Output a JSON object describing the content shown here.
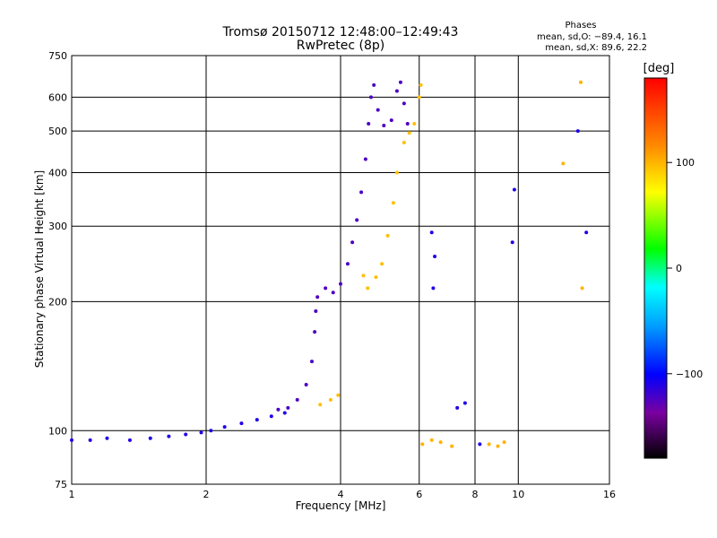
{
  "chart_data": {
    "type": "scatter",
    "title": "Tromsø 20150712 12:48:00–12:49:43",
    "subtitle": "RwPretec (8p)",
    "phase_box": {
      "heading": "Phases",
      "line_o": "mean, sd,O: −89.4, 16.1",
      "line_x": "mean, sd,X:  89.6, 22.2"
    },
    "xlabel": "Frequency [MHz]",
    "ylabel": "Stationary phase Virtual Height [km]",
    "x_scale": "log",
    "y_scale": "log",
    "xlim": [
      1,
      16
    ],
    "ylim": [
      75,
      750
    ],
    "x_ticks": [
      1,
      2,
      4,
      6,
      8,
      10,
      16
    ],
    "x_tick_labels": [
      "1",
      "2",
      "4",
      "6",
      "8",
      "10",
      "16"
    ],
    "y_ticks": [
      75,
      100,
      200,
      300,
      400,
      500,
      600,
      750
    ],
    "y_tick_labels": [
      "75",
      "100",
      "200",
      "300",
      "400",
      "500",
      "600",
      "750"
    ],
    "grid": true,
    "colorbar": {
      "label": "[deg]",
      "range": [
        -180,
        180
      ],
      "ticks": [
        100,
        0,
        -100
      ],
      "tick_labels": [
        "100",
        "0",
        "−100"
      ]
    },
    "series": [
      {
        "phase_deg": -110,
        "points": [
          [
            1.0,
            95
          ],
          [
            1.1,
            95
          ],
          [
            1.2,
            96
          ],
          [
            1.35,
            95
          ],
          [
            1.5,
            96
          ],
          [
            1.65,
            97
          ],
          [
            1.8,
            98
          ],
          [
            1.95,
            99
          ],
          [
            2.05,
            100
          ],
          [
            2.2,
            102
          ],
          [
            2.4,
            104
          ],
          [
            2.6,
            106
          ],
          [
            2.8,
            108
          ],
          [
            3.0,
            110
          ]
        ]
      },
      {
        "phase_deg": -125,
        "points": [
          [
            2.9,
            112
          ],
          [
            3.05,
            113
          ],
          [
            3.2,
            118
          ],
          [
            3.35,
            128
          ],
          [
            3.45,
            145
          ],
          [
            3.5,
            170
          ],
          [
            3.52,
            190
          ],
          [
            3.55,
            205
          ],
          [
            3.7,
            215
          ],
          [
            3.85,
            210
          ],
          [
            4.0,
            220
          ],
          [
            4.15,
            245
          ],
          [
            4.25,
            275
          ],
          [
            4.35,
            310
          ],
          [
            4.45,
            360
          ],
          [
            4.55,
            430
          ],
          [
            4.62,
            520
          ],
          [
            4.68,
            600
          ],
          [
            4.75,
            640
          ],
          [
            4.85,
            560
          ],
          [
            5.0,
            515
          ],
          [
            5.2,
            530
          ],
          [
            5.35,
            620
          ],
          [
            5.45,
            650
          ],
          [
            5.55,
            580
          ],
          [
            5.65,
            520
          ]
        ]
      },
      {
        "phase_deg": 95,
        "points": [
          [
            3.6,
            115
          ],
          [
            3.8,
            118
          ],
          [
            3.95,
            121
          ],
          [
            4.5,
            230
          ],
          [
            4.6,
            215
          ],
          [
            4.8,
            228
          ],
          [
            4.95,
            245
          ],
          [
            5.1,
            285
          ],
          [
            5.25,
            340
          ],
          [
            5.35,
            400
          ],
          [
            5.55,
            470
          ],
          [
            5.7,
            495
          ],
          [
            5.85,
            520
          ],
          [
            6.0,
            600
          ],
          [
            6.05,
            640
          ]
        ]
      },
      {
        "phase_deg": 100,
        "points": [
          [
            6.1,
            93
          ],
          [
            6.4,
            95
          ],
          [
            6.7,
            94
          ],
          [
            7.1,
            92
          ],
          [
            8.6,
            93
          ],
          [
            9.0,
            92
          ],
          [
            9.3,
            94
          ],
          [
            12.6,
            420
          ],
          [
            13.8,
            650
          ],
          [
            13.9,
            215
          ]
        ]
      },
      {
        "phase_deg": -110,
        "points": [
          [
            6.4,
            290
          ],
          [
            6.5,
            255
          ],
          [
            6.45,
            215
          ],
          [
            7.3,
            113
          ],
          [
            7.6,
            116
          ],
          [
            8.2,
            93
          ],
          [
            9.7,
            275
          ],
          [
            9.8,
            365
          ],
          [
            13.6,
            500
          ],
          [
            14.2,
            290
          ]
        ]
      }
    ]
  }
}
